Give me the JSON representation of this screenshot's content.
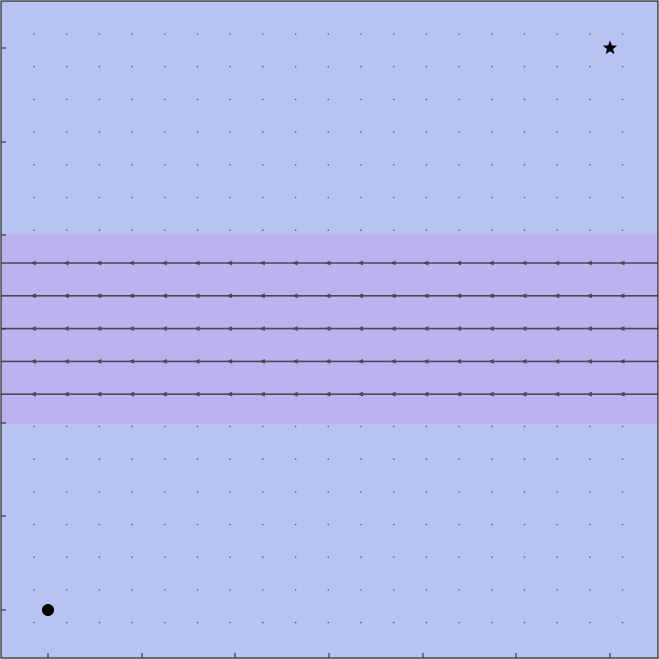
{
  "diagram": {
    "type": "vector-field-gridworld",
    "background_color": "#b7c3f3",
    "current_band_color": "#bab3ef",
    "arrow_color": "#4a4a55",
    "dot_color": "#5a5a66",
    "marker_color": "#000000",
    "current": {
      "direction": "left",
      "rows": 5
    },
    "start_marker": {
      "icon": "circle-icon"
    },
    "goal_marker": {
      "icon": "star-icon"
    }
  }
}
